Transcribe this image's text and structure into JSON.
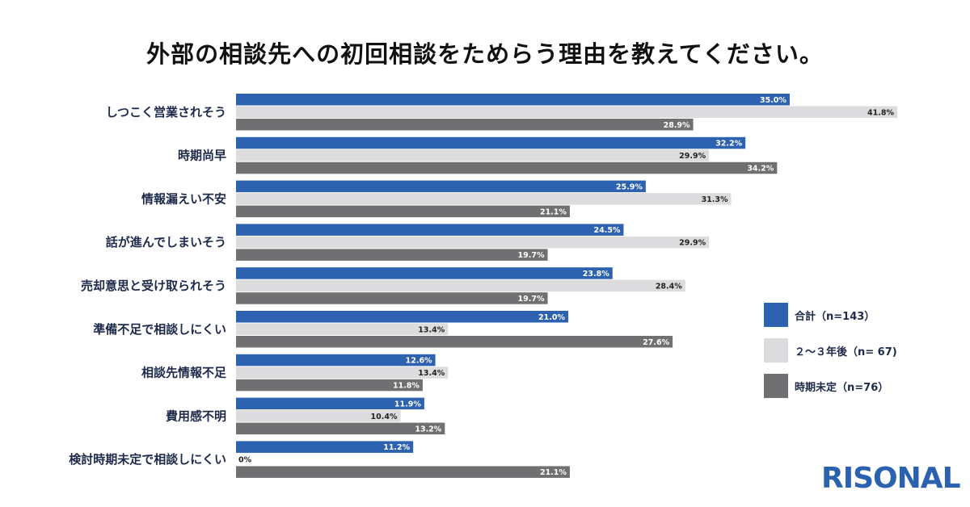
{
  "title": "外部の相談先への初回相談をためらう理由を教えてください。",
  "brand": {
    "name": "RISONAL",
    "color": "#2a62b0"
  },
  "chart_data": {
    "type": "bar",
    "orientation": "horizontal",
    "categories": [
      "しつこく営業されそう",
      "時期尚早",
      "情報漏えい不安",
      "話が進んでしまいそう",
      "売却意思と受け取られそう",
      "準備不足で相談しにくい",
      "相談先情報不足",
      "費用感不明",
      "検討時期未定で相談しにくい"
    ],
    "series": [
      {
        "name": "合計（n=143）",
        "color": "#2d62b0",
        "values": [
          35.0,
          32.2,
          25.9,
          24.5,
          23.8,
          21.0,
          12.6,
          11.9,
          11.2
        ],
        "labels": [
          "35.0%",
          "32.2%",
          "25.9%",
          "24.5%",
          "23.8%",
          "21.0%",
          "12.6%",
          "11.9%",
          "11.2%"
        ]
      },
      {
        "name": "２～３年後（n= 67)",
        "color": "#dcdcde",
        "values": [
          41.8,
          29.9,
          31.3,
          29.9,
          28.4,
          13.4,
          13.4,
          10.4,
          0
        ],
        "labels": [
          "41.8%",
          "29.9%",
          "31.3%",
          "29.9%",
          "28.4%",
          "13.4%",
          "13.4%",
          "10.4%",
          "0%"
        ]
      },
      {
        "name": "時期未定（n=76）",
        "color": "#707073",
        "values": [
          28.9,
          34.2,
          21.1,
          19.7,
          19.7,
          27.6,
          11.8,
          13.2,
          21.1
        ],
        "labels": [
          "28.9%",
          "34.2%",
          "21.1%",
          "19.7%",
          "19.7%",
          "27.6%",
          "11.8%",
          "13.2%",
          "21.1%"
        ]
      }
    ],
    "xlim": [
      0,
      45
    ],
    "grid": false,
    "legend": "right"
  }
}
